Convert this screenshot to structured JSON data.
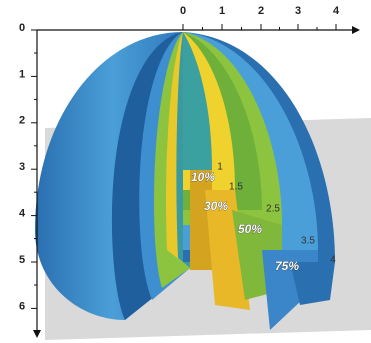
{
  "x_axis": {
    "ticks": [
      "0",
      "1",
      "2",
      "3",
      "4"
    ]
  },
  "y_axis": {
    "ticks": [
      "0",
      "1",
      "2",
      "3",
      "4",
      "5",
      "6"
    ]
  },
  "layers": [
    {
      "percent": "10%",
      "radius": "1"
    },
    {
      "percent": "30%",
      "radius": "1.5"
    },
    {
      "percent": "50%",
      "radius": "2.5"
    },
    {
      "percent": "75%",
      "radius": "3.5"
    }
  ],
  "outer_radius": "4"
}
